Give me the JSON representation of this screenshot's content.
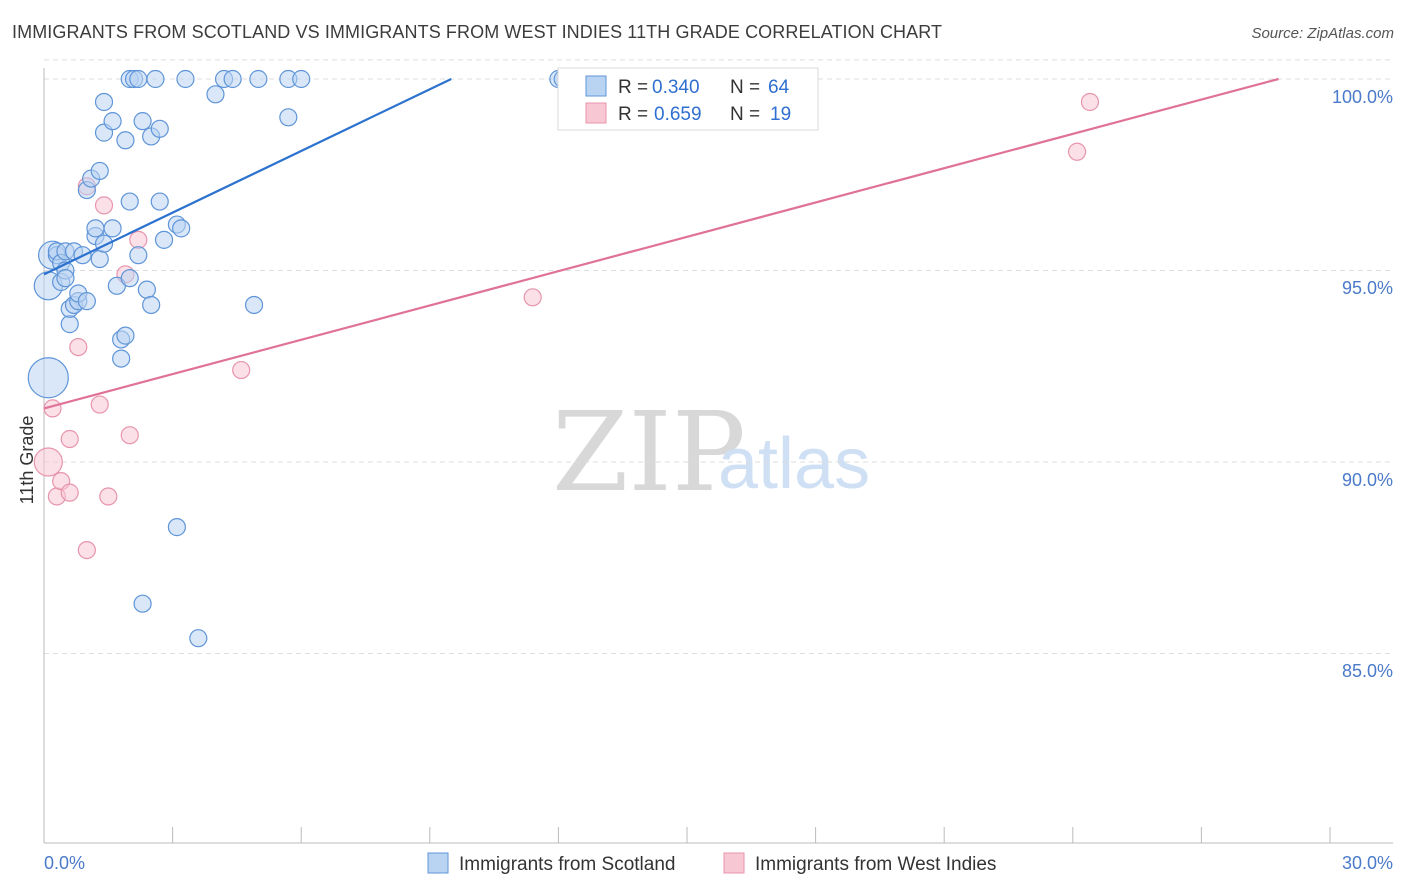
{
  "header": {
    "title": "IMMIGRANTS FROM SCOTLAND VS IMMIGRANTS FROM WEST INDIES 11TH GRADE CORRELATION CHART",
    "source": "Source: ZipAtlas.com"
  },
  "watermark": {
    "zip": "ZIP",
    "atlas": "atlas"
  },
  "colors": {
    "scotland_fill": "#b9d3f2",
    "scotland_stroke": "#5f95d8",
    "scotland_line": "#2c72cf",
    "westindies_fill": "#f8c7d4",
    "westindies_stroke": "#e795ad",
    "westindies_line": "#e07298",
    "tick_label": "#4a7ac9",
    "grid": "#dddddd"
  },
  "legend": {
    "rows": [
      {
        "r_label": "R =",
        "r_value": "0.340",
        "n_label": "N =",
        "n_value": "64"
      },
      {
        "r_label": "R =",
        "r_value": "0.659",
        "n_label": "N =",
        "n_value": "19"
      }
    ]
  },
  "chart_data": {
    "type": "scatter",
    "title": "IMMIGRANTS FROM SCOTLAND VS IMMIGRANTS FROM WEST INDIES 11TH GRADE CORRELATION CHART",
    "xlabel": "",
    "ylabel": "11th Grade",
    "xlim": [
      0,
      30
    ],
    "ylim": [
      80.5,
      100.5
    ],
    "x_tick_labels": [
      "0.0%",
      "30.0%"
    ],
    "y_ticks": [
      85,
      90,
      95,
      100
    ],
    "y_tick_labels": [
      "85.0%",
      "90.0%",
      "95.0%",
      "100.0%"
    ],
    "grid": true,
    "series": [
      {
        "name": "Immigrants from Scotland",
        "r": 0.34,
        "n": 64,
        "trend": {
          "x0": 0.0,
          "y0": 94.9,
          "x1": 9.5,
          "y1": 100.0
        },
        "points": [
          [
            0.1,
            92.2,
            3
          ],
          [
            0.1,
            94.6,
            2
          ],
          [
            0.2,
            95.4,
            2
          ],
          [
            0.3,
            95.4,
            1
          ],
          [
            0.3,
            95.5,
            1
          ],
          [
            0.4,
            95.2,
            1
          ],
          [
            0.4,
            94.7,
            1
          ],
          [
            0.5,
            95.5,
            1
          ],
          [
            0.5,
            95.0,
            1
          ],
          [
            0.5,
            94.8,
            1
          ],
          [
            0.6,
            93.6,
            1
          ],
          [
            0.6,
            94.0,
            1
          ],
          [
            0.7,
            94.1,
            1
          ],
          [
            0.7,
            95.5,
            1
          ],
          [
            0.8,
            94.2,
            1
          ],
          [
            0.8,
            94.4,
            1
          ],
          [
            0.9,
            95.4,
            1
          ],
          [
            1.0,
            94.2,
            1
          ],
          [
            1.0,
            97.1,
            1
          ],
          [
            1.1,
            97.4,
            1
          ],
          [
            1.2,
            95.9,
            1
          ],
          [
            1.2,
            96.1,
            1
          ],
          [
            1.3,
            95.3,
            1
          ],
          [
            1.3,
            97.6,
            1
          ],
          [
            1.4,
            98.6,
            1
          ],
          [
            1.4,
            95.7,
            1
          ],
          [
            1.4,
            99.4,
            1
          ],
          [
            1.6,
            98.9,
            1
          ],
          [
            1.6,
            96.1,
            1
          ],
          [
            1.7,
            94.6,
            1
          ],
          [
            1.8,
            92.7,
            1
          ],
          [
            1.8,
            93.2,
            1
          ],
          [
            1.9,
            93.3,
            1
          ],
          [
            1.9,
            98.4,
            1
          ],
          [
            2.0,
            94.8,
            1
          ],
          [
            2.0,
            96.8,
            1
          ],
          [
            2.0,
            100.0,
            1
          ],
          [
            2.1,
            100.0,
            1
          ],
          [
            2.2,
            95.4,
            1
          ],
          [
            2.3,
            86.3,
            1
          ],
          [
            2.3,
            98.9,
            1
          ],
          [
            2.4,
            94.5,
            1
          ],
          [
            2.5,
            94.1,
            1
          ],
          [
            2.5,
            98.5,
            1
          ],
          [
            2.6,
            100.0,
            1
          ],
          [
            2.7,
            96.8,
            1
          ],
          [
            2.7,
            98.7,
            1
          ],
          [
            2.8,
            95.8,
            1
          ],
          [
            3.1,
            88.3,
            1
          ],
          [
            3.1,
            96.2,
            1
          ],
          [
            3.2,
            96.1,
            1
          ],
          [
            3.3,
            100.0,
            1
          ],
          [
            3.6,
            85.4,
            1
          ],
          [
            4.0,
            99.6,
            1
          ],
          [
            4.2,
            100.0,
            1
          ],
          [
            4.4,
            100.0,
            1
          ],
          [
            4.9,
            94.1,
            1
          ],
          [
            5.0,
            100.0,
            1
          ],
          [
            5.7,
            99.0,
            1
          ],
          [
            5.7,
            100.0,
            1
          ],
          [
            6.0,
            100.0,
            1
          ],
          [
            12.0,
            100.0,
            1
          ],
          [
            12.1,
            100.0,
            1
          ],
          [
            2.2,
            100.0,
            1
          ]
        ]
      },
      {
        "name": "Immigrants from West Indies",
        "r": 0.659,
        "n": 19,
        "trend": {
          "x0": 0.0,
          "y0": 91.4,
          "x1": 28.8,
          "y1": 100.0
        },
        "points": [
          [
            0.1,
            90.0,
            2
          ],
          [
            0.2,
            91.4,
            1
          ],
          [
            0.3,
            89.1,
            1
          ],
          [
            0.4,
            89.5,
            1
          ],
          [
            0.6,
            90.6,
            1
          ],
          [
            0.6,
            89.2,
            1
          ],
          [
            0.8,
            93.0,
            1
          ],
          [
            1.0,
            97.2,
            1
          ],
          [
            1.0,
            87.7,
            1
          ],
          [
            1.3,
            91.5,
            1
          ],
          [
            1.4,
            96.7,
            1
          ],
          [
            1.5,
            89.1,
            1
          ],
          [
            1.9,
            94.9,
            1
          ],
          [
            2.0,
            90.7,
            1
          ],
          [
            2.2,
            95.8,
            1
          ],
          [
            4.6,
            92.4,
            1
          ],
          [
            11.4,
            94.3,
            1
          ],
          [
            24.1,
            98.1,
            1
          ],
          [
            24.4,
            99.4,
            1
          ]
        ]
      }
    ]
  }
}
